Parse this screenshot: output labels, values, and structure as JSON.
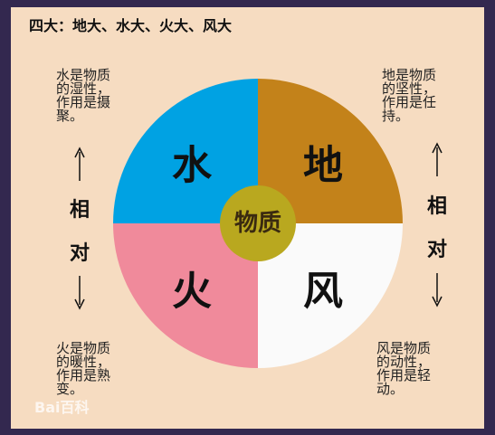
{
  "header": {
    "title": "四大：地大、水大、火大、风大"
  },
  "center": {
    "label": "物质"
  },
  "quadrants": [
    {
      "label": "水",
      "description": [
        "水是物质",
        "的湿性，",
        "作用是摄",
        "聚。"
      ]
    },
    {
      "label": "地",
      "description": [
        "地是物质",
        "的坚性，",
        "作用是任",
        "持。"
      ]
    },
    {
      "label": "火",
      "description": [
        "火是物质",
        "的暖性，",
        "作用是熟",
        "变。"
      ]
    },
    {
      "label": "风",
      "description": [
        "风是物质",
        "的动性，",
        "作用是轻",
        "动。"
      ]
    }
  ],
  "relation": [
    "相",
    "对"
  ],
  "watermark": "Bai百科"
}
